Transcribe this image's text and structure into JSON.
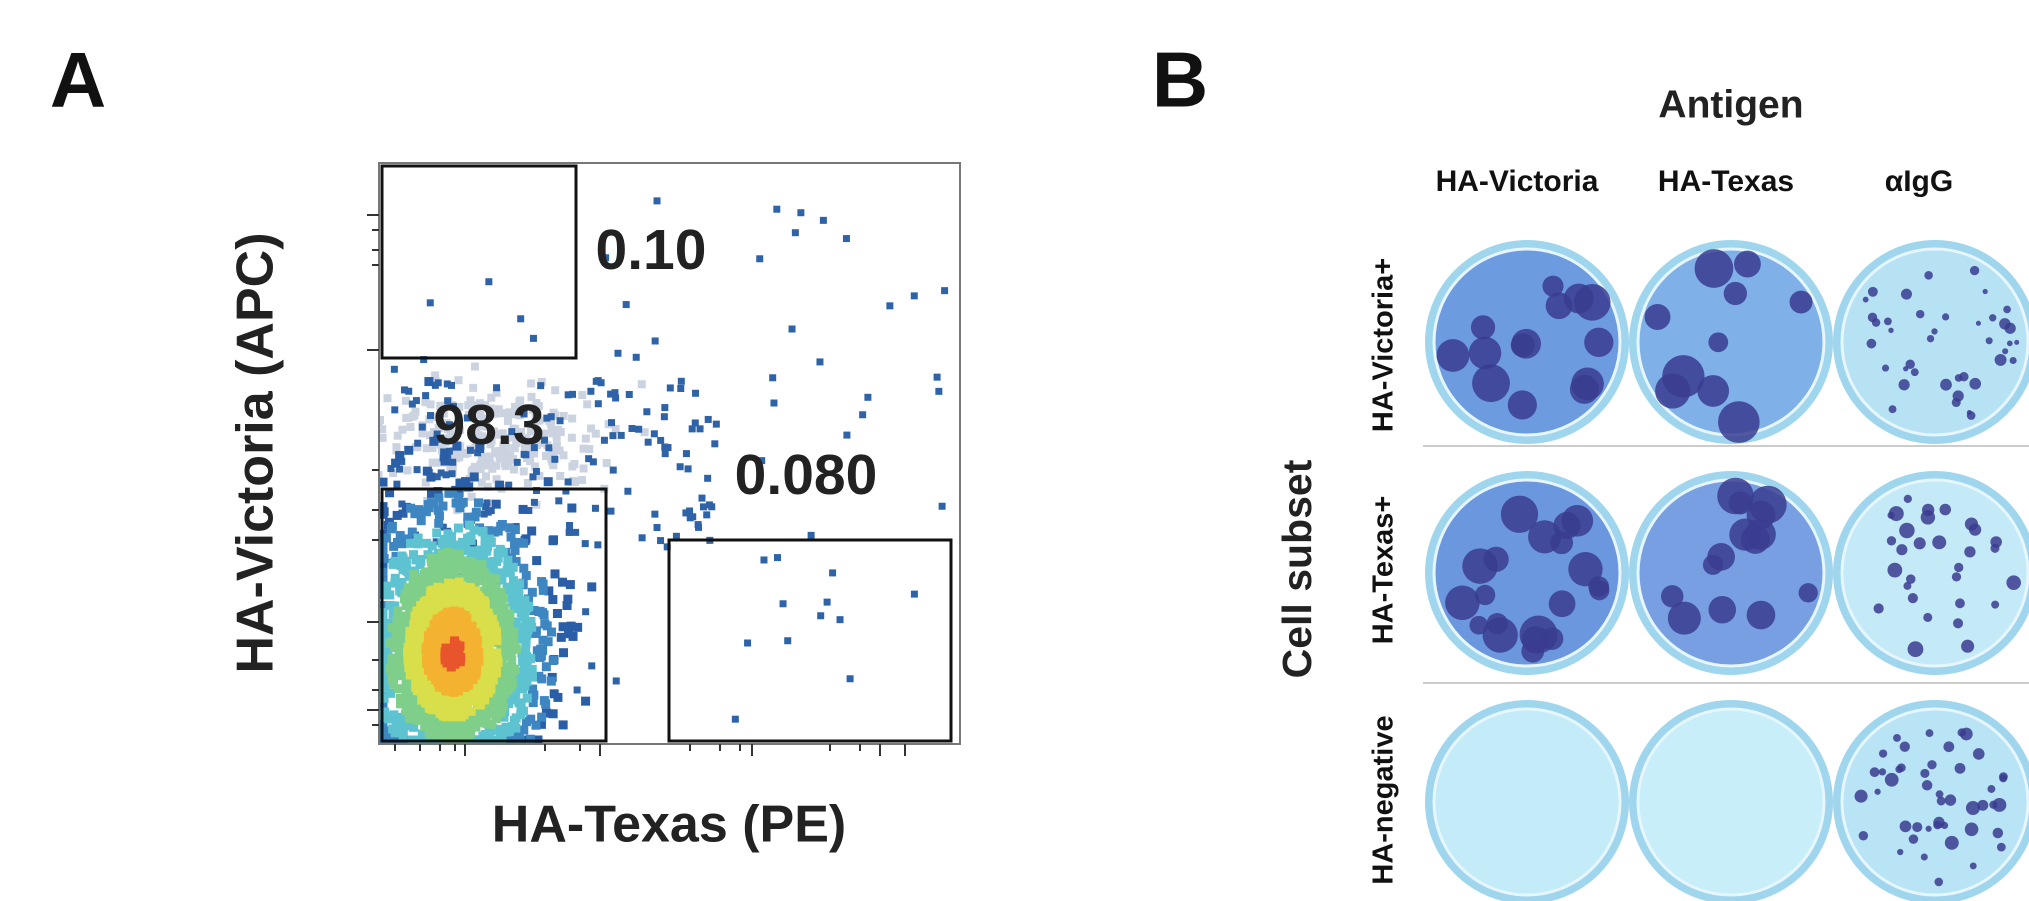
{
  "panel_a": {
    "label": "A",
    "x_label": "HA-Texas (PE)",
    "y_label": "HA-Victoria (APC)",
    "gates": [
      {
        "label": "0.10"
      },
      {
        "label": "98.3"
      },
      {
        "label": "0.080"
      }
    ]
  },
  "panel_b": {
    "label": "B",
    "column_title": "Antigen",
    "columns": [
      "HA-Victoria",
      "HA-Texas",
      "αIgG"
    ],
    "row_title": "Cell subset",
    "rows": [
      "HA-Victoria+",
      "HA-Texas+",
      "HA-negative"
    ]
  }
}
